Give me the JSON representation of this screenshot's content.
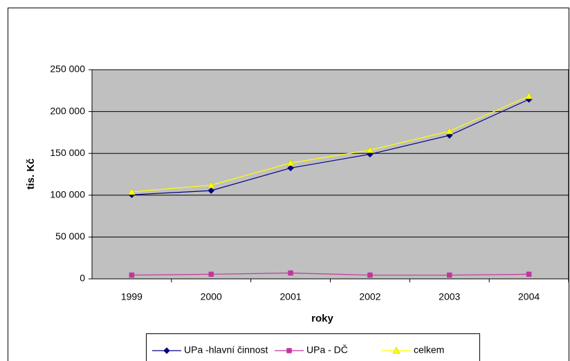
{
  "chart_data": {
    "type": "line",
    "x_label": "roky",
    "y_label": "tis. Kč",
    "categories": [
      "1999",
      "2000",
      "2001",
      "2002",
      "2003",
      "2004"
    ],
    "series": [
      {
        "name": "UPa -hlavní činnost",
        "color": "#000080",
        "marker": "diamond",
        "values": [
          100500,
          105500,
          132500,
          149000,
          171500,
          214500
        ]
      },
      {
        "name": "UPa - DČ",
        "color": "#c0369c",
        "marker": "square",
        "values": [
          4500,
          5500,
          7000,
          4500,
          4500,
          5500
        ]
      },
      {
        "name": "celkem",
        "color": "#ffff00",
        "marker": "triangle",
        "values": [
          104000,
          112000,
          138500,
          154000,
          176500,
          218500
        ]
      }
    ],
    "ylim": [
      0,
      250000
    ],
    "yticks": [
      0,
      {
        "value": 50000,
        "label": "50 000"
      },
      {
        "value": 100000,
        "label": "100 000"
      },
      {
        "value": 150000,
        "label": "150 000"
      },
      {
        "value": 200000,
        "label": "200 000"
      },
      {
        "value": 250000,
        "label": "250 000"
      }
    ],
    "grid": true,
    "plot_background": "#c0c0c0",
    "legend": "bottom"
  }
}
